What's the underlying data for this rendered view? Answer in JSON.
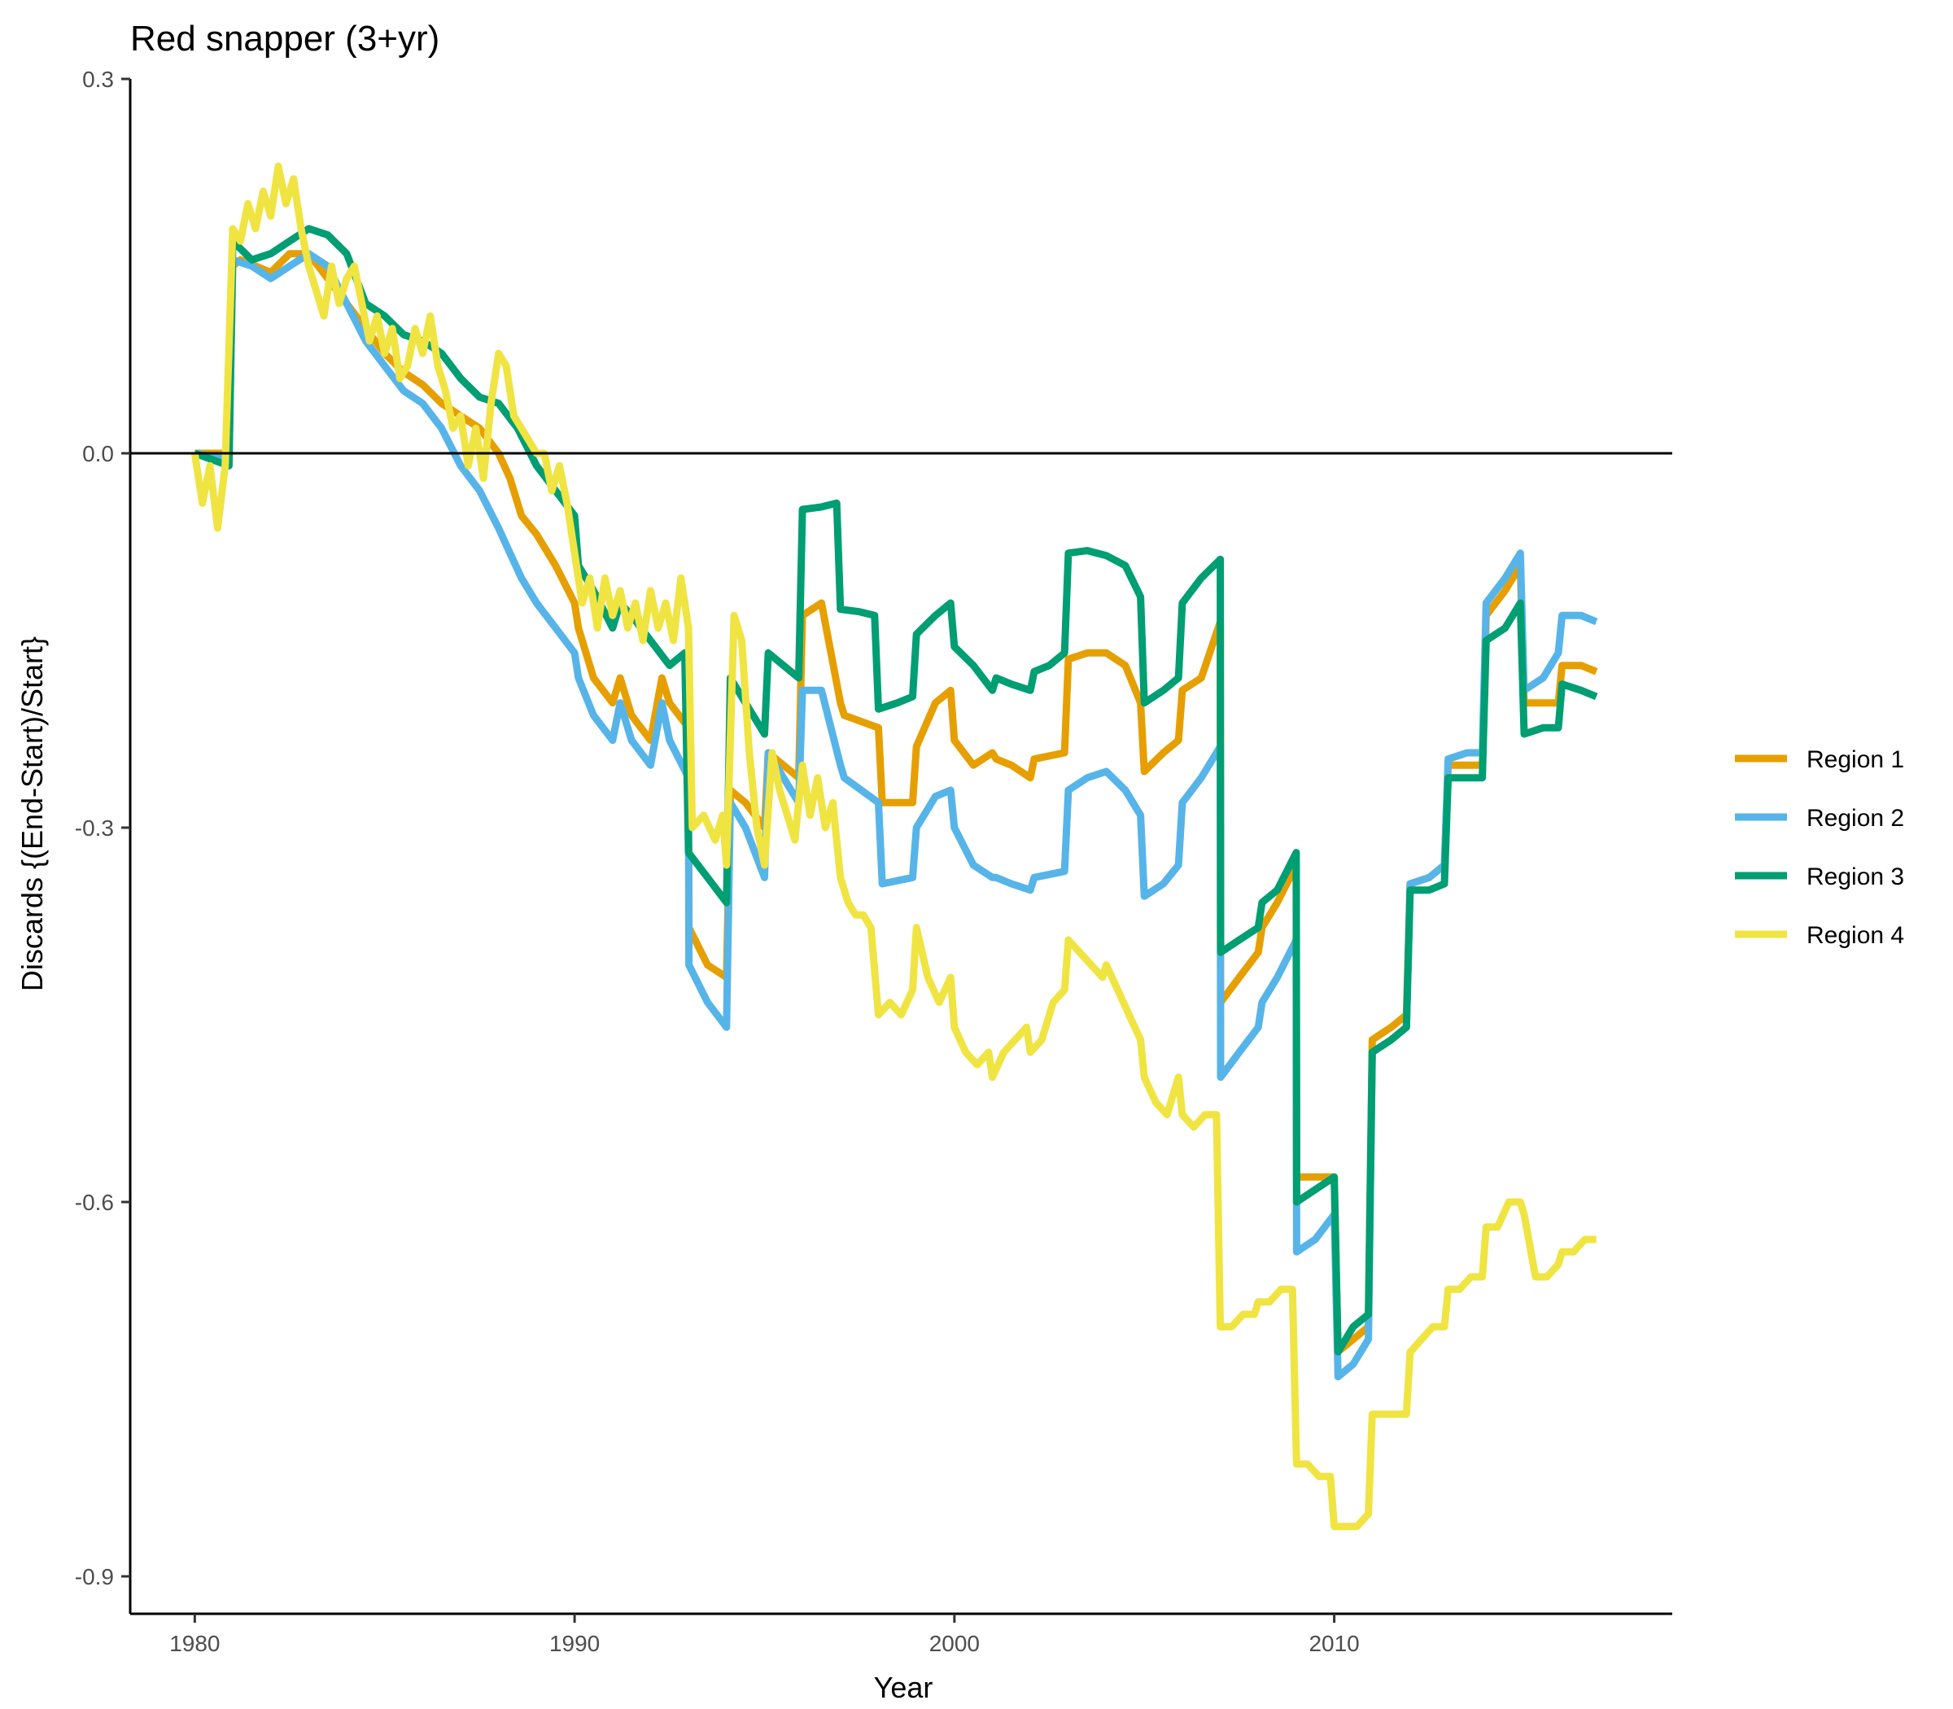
{
  "chart_data": {
    "type": "line",
    "title": "Red snapper (3+yr)",
    "xlabel": "Year",
    "ylabel": "Discards {(End-Start)/Start}",
    "xlim": [
      1978.3,
      2018.9
    ],
    "ylim": [
      -0.93,
      0.3
    ],
    "x_ticks": [
      1980,
      1990,
      2000,
      2010
    ],
    "x_tick_labels": [
      "1980",
      "1990",
      "2000",
      "2010"
    ],
    "y_ticks": [
      0.3,
      0.0,
      -0.3,
      -0.6,
      -0.9
    ],
    "y_tick_labels": [
      "0.3",
      "0.0",
      "-0.3",
      "-0.6",
      "-0.9"
    ],
    "reference_line_y": 0.0,
    "grid": false,
    "legend_position": "right",
    "series": [
      {
        "name": "Region 1",
        "color": "#E69F00",
        "x": [
          1980.0,
          1980.9,
          1981.0,
          1981.2,
          1982.0,
          1982.5,
          1983.0,
          1983.5,
          1984.0,
          1984.5,
          1985.0,
          1985.5,
          1986.0,
          1986.5,
          1987.0,
          1987.5,
          1988.0,
          1988.3,
          1988.6,
          1989.0,
          1989.5,
          1990.0,
          1990.1,
          1990.5,
          1991.0,
          1991.2,
          1991.5,
          1992.0,
          1992.3,
          1992.5,
          1993.0,
          1993.01,
          1993.5,
          1994.0,
          1994.1,
          1994.5,
          1995.0,
          1995.1,
          1995.9,
          1996.0,
          1996.5,
          1997.0,
          1997.1,
          1998.0,
          1998.1,
          1998.9,
          1999.0,
          1999.5,
          1999.9,
          2000.0,
          2000.5,
          2001.0,
          2001.1,
          2001.5,
          2002.0,
          2002.1,
          2002.9,
          2003.0,
          2003.5,
          2004.0,
          2004.5,
          2004.9,
          2005.0,
          2005.5,
          2005.9,
          2006.0,
          2006.5,
          2007.0,
          2007.01,
          2007.5,
          2008.0,
          2008.1,
          2008.5,
          2009.0,
          2009.01,
          2009.5,
          2010.0,
          2010.1,
          2010.5,
          2010.9,
          2011.0,
          2011.5,
          2011.9,
          2012.0,
          2012.5,
          2012.9,
          2013.0,
          2013.5,
          2013.9,
          2014.0,
          2014.5,
          2014.9,
          2015.0,
          2015.5,
          2015.9,
          2016.0,
          2016.5,
          2016.9
        ],
        "y": [
          0.0,
          0.0,
          0.15,
          0.155,
          0.145,
          0.16,
          0.16,
          0.14,
          0.12,
          0.1,
          0.08,
          0.065,
          0.055,
          0.04,
          0.03,
          0.02,
          0.0,
          -0.02,
          -0.05,
          -0.065,
          -0.09,
          -0.12,
          -0.14,
          -0.18,
          -0.2,
          -0.18,
          -0.21,
          -0.23,
          -0.18,
          -0.2,
          -0.22,
          -0.38,
          -0.41,
          -0.42,
          -0.27,
          -0.28,
          -0.3,
          -0.24,
          -0.26,
          -0.13,
          -0.12,
          -0.2,
          -0.21,
          -0.22,
          -0.28,
          -0.28,
          -0.235,
          -0.2,
          -0.19,
          -0.23,
          -0.25,
          -0.24,
          -0.245,
          -0.25,
          -0.26,
          -0.245,
          -0.24,
          -0.165,
          -0.16,
          -0.16,
          -0.17,
          -0.2,
          -0.255,
          -0.24,
          -0.23,
          -0.19,
          -0.18,
          -0.135,
          -0.44,
          -0.42,
          -0.4,
          -0.38,
          -0.36,
          -0.33,
          -0.58,
          -0.58,
          -0.58,
          -0.72,
          -0.71,
          -0.7,
          -0.47,
          -0.46,
          -0.45,
          -0.345,
          -0.34,
          -0.33,
          -0.25,
          -0.25,
          -0.25,
          -0.13,
          -0.11,
          -0.09,
          -0.2,
          -0.2,
          -0.2,
          -0.17,
          -0.17,
          -0.175
        ]
      },
      {
        "name": "Region 2",
        "color": "#56B4E9",
        "x": [
          1980.0,
          1980.9,
          1981.0,
          1981.5,
          1982.0,
          1982.5,
          1983.0,
          1983.5,
          1984.0,
          1984.5,
          1985.0,
          1985.5,
          1986.0,
          1986.5,
          1987.0,
          1987.5,
          1988.0,
          1988.3,
          1988.6,
          1989.0,
          1989.5,
          1990.0,
          1990.1,
          1990.5,
          1991.0,
          1991.2,
          1991.5,
          1992.0,
          1992.3,
          1992.5,
          1993.0,
          1993.01,
          1993.5,
          1994.0,
          1994.1,
          1994.5,
          1995.0,
          1995.1,
          1995.9,
          1996.0,
          1996.5,
          1997.0,
          1997.1,
          1998.0,
          1998.1,
          1998.9,
          1999.0,
          1999.5,
          1999.9,
          2000.0,
          2000.5,
          2001.0,
          2001.1,
          2001.5,
          2002.0,
          2002.1,
          2002.9,
          2003.0,
          2003.5,
          2004.0,
          2004.5,
          2004.9,
          2005.0,
          2005.5,
          2005.9,
          2006.0,
          2006.5,
          2007.0,
          2007.01,
          2007.5,
          2008.0,
          2008.1,
          2008.5,
          2009.0,
          2009.01,
          2009.5,
          2010.0,
          2010.1,
          2010.5,
          2010.9,
          2011.0,
          2011.5,
          2011.9,
          2012.0,
          2012.5,
          2012.9,
          2013.0,
          2013.5,
          2013.9,
          2014.0,
          2014.5,
          2014.9,
          2015.0,
          2015.5,
          2015.9,
          2016.0,
          2016.5,
          2016.9
        ],
        "y": [
          0.0,
          -0.005,
          0.155,
          0.15,
          0.14,
          0.15,
          0.16,
          0.15,
          0.12,
          0.09,
          0.07,
          0.05,
          0.04,
          0.02,
          -0.01,
          -0.03,
          -0.06,
          -0.08,
          -0.1,
          -0.12,
          -0.14,
          -0.16,
          -0.18,
          -0.21,
          -0.23,
          -0.2,
          -0.23,
          -0.25,
          -0.2,
          -0.23,
          -0.26,
          -0.41,
          -0.44,
          -0.46,
          -0.28,
          -0.3,
          -0.34,
          -0.24,
          -0.28,
          -0.19,
          -0.19,
          -0.25,
          -0.26,
          -0.28,
          -0.345,
          -0.34,
          -0.3,
          -0.275,
          -0.27,
          -0.3,
          -0.33,
          -0.34,
          -0.34,
          -0.345,
          -0.35,
          -0.34,
          -0.335,
          -0.27,
          -0.26,
          -0.255,
          -0.27,
          -0.29,
          -0.355,
          -0.345,
          -0.33,
          -0.28,
          -0.26,
          -0.235,
          -0.5,
          -0.48,
          -0.46,
          -0.44,
          -0.42,
          -0.39,
          -0.64,
          -0.63,
          -0.61,
          -0.74,
          -0.73,
          -0.71,
          -0.48,
          -0.47,
          -0.46,
          -0.345,
          -0.34,
          -0.33,
          -0.245,
          -0.24,
          -0.24,
          -0.12,
          -0.1,
          -0.08,
          -0.19,
          -0.18,
          -0.16,
          -0.13,
          -0.13,
          -0.135
        ]
      },
      {
        "name": "Region 3",
        "color": "#009E73",
        "x": [
          1980.0,
          1980.9,
          1981.0,
          1981.5,
          1982.0,
          1982.5,
          1983.0,
          1983.5,
          1984.0,
          1984.5,
          1985.0,
          1985.5,
          1986.0,
          1986.5,
          1987.0,
          1987.5,
          1988.0,
          1988.5,
          1989.0,
          1989.5,
          1990.0,
          1990.1,
          1990.5,
          1991.0,
          1991.2,
          1991.5,
          1992.0,
          1992.5,
          1992.9,
          1993.0,
          1993.5,
          1994.0,
          1994.1,
          1994.5,
          1995.0,
          1995.1,
          1995.5,
          1995.9,
          1996.0,
          1996.5,
          1996.9,
          1997.0,
          1997.5,
          1997.9,
          1998.0,
          1998.5,
          1998.9,
          1999.0,
          1999.5,
          1999.9,
          2000.0,
          2000.5,
          2001.0,
          2001.1,
          2001.5,
          2002.0,
          2002.1,
          2002.5,
          2002.9,
          2003.0,
          2003.5,
          2004.0,
          2004.5,
          2004.9,
          2005.0,
          2005.5,
          2005.9,
          2006.0,
          2006.5,
          2007.0,
          2007.01,
          2007.5,
          2008.0,
          2008.1,
          2008.5,
          2009.0,
          2009.01,
          2009.5,
          2010.0,
          2010.1,
          2010.5,
          2010.9,
          2011.0,
          2011.5,
          2011.9,
          2012.0,
          2012.5,
          2012.9,
          2013.0,
          2013.5,
          2013.9,
          2014.0,
          2014.5,
          2014.9,
          2015.0,
          2015.5,
          2015.9,
          2016.0,
          2016.5,
          2016.9
        ],
        "y": [
          0.0,
          -0.01,
          0.17,
          0.155,
          0.16,
          0.17,
          0.18,
          0.175,
          0.16,
          0.12,
          0.11,
          0.095,
          0.09,
          0.08,
          0.06,
          0.045,
          0.04,
          0.02,
          -0.01,
          -0.03,
          -0.05,
          -0.09,
          -0.11,
          -0.14,
          -0.12,
          -0.13,
          -0.15,
          -0.17,
          -0.16,
          -0.32,
          -0.34,
          -0.36,
          -0.18,
          -0.2,
          -0.225,
          -0.16,
          -0.17,
          -0.18,
          -0.045,
          -0.043,
          -0.04,
          -0.125,
          -0.127,
          -0.13,
          -0.205,
          -0.2,
          -0.195,
          -0.145,
          -0.13,
          -0.12,
          -0.155,
          -0.17,
          -0.19,
          -0.18,
          -0.185,
          -0.19,
          -0.175,
          -0.17,
          -0.16,
          -0.08,
          -0.078,
          -0.082,
          -0.09,
          -0.115,
          -0.2,
          -0.19,
          -0.18,
          -0.12,
          -0.1,
          -0.085,
          -0.4,
          -0.39,
          -0.38,
          -0.36,
          -0.35,
          -0.32,
          -0.6,
          -0.59,
          -0.58,
          -0.72,
          -0.7,
          -0.69,
          -0.48,
          -0.47,
          -0.46,
          -0.35,
          -0.35,
          -0.345,
          -0.26,
          -0.26,
          -0.26,
          -0.15,
          -0.14,
          -0.12,
          -0.225,
          -0.22,
          -0.22,
          -0.185,
          -0.19,
          -0.195
        ]
      },
      {
        "name": "Region 4",
        "color": "#F0E442",
        "x": [
          1980.0,
          1980.2,
          1980.4,
          1980.6,
          1980.8,
          1981.0,
          1981.2,
          1981.4,
          1981.6,
          1981.8,
          1982.0,
          1982.2,
          1982.4,
          1982.6,
          1982.8,
          1983.0,
          1983.2,
          1983.4,
          1983.6,
          1983.8,
          1984.0,
          1984.2,
          1984.4,
          1984.6,
          1984.8,
          1985.0,
          1985.2,
          1985.4,
          1985.6,
          1985.8,
          1986.0,
          1986.2,
          1986.4,
          1986.6,
          1986.8,
          1987.0,
          1987.2,
          1987.4,
          1987.6,
          1987.8,
          1988.0,
          1988.2,
          1988.4,
          1988.6,
          1988.8,
          1989.0,
          1989.2,
          1989.4,
          1989.6,
          1989.8,
          1990.0,
          1990.2,
          1990.4,
          1990.6,
          1990.8,
          1991.0,
          1991.2,
          1991.4,
          1991.6,
          1991.8,
          1992.0,
          1992.2,
          1992.4,
          1992.6,
          1992.8,
          1993.0,
          1993.1,
          1993.4,
          1993.7,
          1993.9,
          1994.0,
          1994.2,
          1994.4,
          1994.6,
          1994.8,
          1995.0,
          1995.2,
          1995.4,
          1995.6,
          1995.8,
          1996.0,
          1996.2,
          1996.4,
          1996.6,
          1996.8,
          1997.0,
          1997.2,
          1997.4,
          1997.6,
          1997.8,
          1998.0,
          1998.3,
          1998.6,
          1998.9,
          1999.0,
          1999.3,
          1999.6,
          1999.9,
          2000.0,
          2000.3,
          2000.6,
          2000.9,
          2001.0,
          2001.3,
          2001.6,
          2001.9,
          2002.0,
          2002.3,
          2002.6,
          2002.9,
          2003.0,
          2003.3,
          2003.6,
          2003.9,
          2004.0,
          2004.3,
          2004.6,
          2004.9,
          2005.0,
          2005.3,
          2005.6,
          2005.9,
          2006.0,
          2006.3,
          2006.6,
          2006.9,
          2007.0,
          2007.01,
          2007.3,
          2007.6,
          2007.9,
          2008.0,
          2008.3,
          2008.6,
          2008.9,
          2009.0,
          2009.01,
          2009.3,
          2009.6,
          2009.9,
          2010.0,
          2010.01,
          2010.3,
          2010.6,
          2010.9,
          2011.0,
          2011.01,
          2011.3,
          2011.6,
          2011.9,
          2012.0,
          2012.01,
          2012.3,
          2012.6,
          2012.9,
          2013.0,
          2013.3,
          2013.6,
          2013.9,
          2014.0,
          2014.3,
          2014.6,
          2014.9,
          2015.0,
          2015.3,
          2015.6,
          2015.9,
          2016.0,
          2016.3,
          2016.6,
          2016.9
        ],
        "y": [
          0.0,
          -0.04,
          -0.01,
          -0.06,
          -0.01,
          0.18,
          0.17,
          0.2,
          0.18,
          0.21,
          0.19,
          0.23,
          0.2,
          0.22,
          0.18,
          0.15,
          0.13,
          0.11,
          0.15,
          0.12,
          0.14,
          0.15,
          0.12,
          0.09,
          0.11,
          0.08,
          0.1,
          0.06,
          0.07,
          0.1,
          0.08,
          0.11,
          0.07,
          0.05,
          0.02,
          0.03,
          -0.01,
          0.02,
          -0.02,
          0.04,
          0.08,
          0.07,
          0.03,
          0.02,
          0.01,
          0.0,
          0.0,
          -0.03,
          -0.01,
          -0.04,
          -0.08,
          -0.12,
          -0.1,
          -0.14,
          -0.1,
          -0.13,
          -0.11,
          -0.14,
          -0.12,
          -0.15,
          -0.11,
          -0.14,
          -0.12,
          -0.15,
          -0.1,
          -0.14,
          -0.3,
          -0.29,
          -0.31,
          -0.29,
          -0.33,
          -0.13,
          -0.15,
          -0.24,
          -0.3,
          -0.33,
          -0.24,
          -0.27,
          -0.29,
          -0.31,
          -0.25,
          -0.29,
          -0.26,
          -0.3,
          -0.28,
          -0.34,
          -0.36,
          -0.37,
          -0.37,
          -0.38,
          -0.45,
          -0.44,
          -0.45,
          -0.43,
          -0.38,
          -0.42,
          -0.44,
          -0.42,
          -0.46,
          -0.48,
          -0.49,
          -0.48,
          -0.5,
          -0.48,
          -0.47,
          -0.46,
          -0.48,
          -0.47,
          -0.44,
          -0.43,
          -0.39,
          -0.4,
          -0.41,
          -0.42,
          -0.41,
          -0.43,
          -0.45,
          -0.47,
          -0.5,
          -0.52,
          -0.53,
          -0.5,
          -0.53,
          -0.54,
          -0.53,
          -0.53,
          -0.7,
          -0.7,
          -0.7,
          -0.69,
          -0.69,
          -0.68,
          -0.68,
          -0.67,
          -0.67,
          -0.8,
          -0.81,
          -0.81,
          -0.82,
          -0.82,
          -0.86,
          -0.86,
          -0.86,
          -0.86,
          -0.85,
          -0.77,
          -0.77,
          -0.77,
          -0.77,
          -0.77,
          -0.72,
          -0.72,
          -0.71,
          -0.7,
          -0.7,
          -0.67,
          -0.67,
          -0.66,
          -0.66,
          -0.62,
          -0.62,
          -0.6,
          -0.6,
          -0.61,
          -0.66,
          -0.66,
          -0.65,
          -0.64,
          -0.64,
          -0.63,
          -0.63
        ]
      }
    ]
  }
}
